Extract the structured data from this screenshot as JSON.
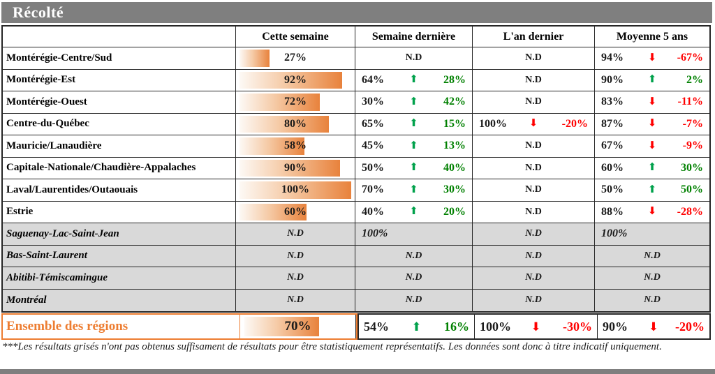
{
  "title": "Récolté",
  "columns": [
    "Cette semaine",
    "Semaine dernière",
    "L'an dernier",
    "Moyenne 5 ans"
  ],
  "icons": {
    "up": "⬆",
    "down": "⬇"
  },
  "colors": {
    "accent_orange": "#ed7d31",
    "bar_orange": "#e8823c",
    "green_text": "#008000",
    "green_arrow": "#00a14b",
    "red": "#ff0000",
    "gray_band": "#7f7f7f",
    "gray_row": "#d9d9d9"
  },
  "table": {
    "rows": [
      {
        "name": "Montérégie-Centre/Sud",
        "grayed": false,
        "this_week": {
          "bar_pct": 27,
          "label": "27%"
        },
        "last_week": {
          "nd": "N.D"
        },
        "last_year": {
          "nd": "N.D"
        },
        "avg_5yr": {
          "value": "94%",
          "dir": "down",
          "change": "-67%"
        }
      },
      {
        "name": "Montérégie-Est",
        "grayed": false,
        "this_week": {
          "bar_pct": 92,
          "label": "92%"
        },
        "last_week": {
          "value": "64%",
          "dir": "up",
          "change": "28%"
        },
        "last_year": {
          "nd": "N.D"
        },
        "avg_5yr": {
          "value": "90%",
          "dir": "up",
          "change": "2%"
        }
      },
      {
        "name": "Montérégie-Ouest",
        "grayed": false,
        "this_week": {
          "bar_pct": 72,
          "label": "72%"
        },
        "last_week": {
          "value": "30%",
          "dir": "up",
          "change": "42%"
        },
        "last_year": {
          "nd": "N.D"
        },
        "avg_5yr": {
          "value": "83%",
          "dir": "down",
          "change": "-11%"
        }
      },
      {
        "name": "Centre-du-Québec",
        "grayed": false,
        "this_week": {
          "bar_pct": 80,
          "label": "80%"
        },
        "last_week": {
          "value": "65%",
          "dir": "up",
          "change": "15%"
        },
        "last_year": {
          "value": "100%",
          "dir": "down",
          "change": "-20%"
        },
        "avg_5yr": {
          "value": "87%",
          "dir": "down",
          "change": "-7%"
        }
      },
      {
        "name": "Mauricie/Lanaudière",
        "grayed": false,
        "this_week": {
          "bar_pct": 58,
          "label": "58%"
        },
        "last_week": {
          "value": "45%",
          "dir": "up",
          "change": "13%"
        },
        "last_year": {
          "nd": "N.D"
        },
        "avg_5yr": {
          "value": "67%",
          "dir": "down",
          "change": "-9%"
        }
      },
      {
        "name": "Capitale-Nationale/Chaudière-Appalaches",
        "grayed": false,
        "this_week": {
          "bar_pct": 90,
          "label": "90%"
        },
        "last_week": {
          "value": "50%",
          "dir": "up",
          "change": "40%"
        },
        "last_year": {
          "nd": "N.D"
        },
        "avg_5yr": {
          "value": "60%",
          "dir": "up",
          "change": "30%"
        }
      },
      {
        "name": "Laval/Laurentides/Outaouais",
        "grayed": false,
        "this_week": {
          "bar_pct": 100,
          "label": "100%"
        },
        "last_week": {
          "value": "70%",
          "dir": "up",
          "change": "30%"
        },
        "last_year": {
          "nd": "N.D"
        },
        "avg_5yr": {
          "value": "50%",
          "dir": "up",
          "change": "50%"
        }
      },
      {
        "name": "Estrie",
        "grayed": false,
        "this_week": {
          "bar_pct": 60,
          "label": "60%"
        },
        "last_week": {
          "value": "40%",
          "dir": "up",
          "change": "20%"
        },
        "last_year": {
          "nd": "N.D"
        },
        "avg_5yr": {
          "value": "88%",
          "dir": "down",
          "change": "-28%"
        }
      },
      {
        "name": "Saguenay-Lac-Saint-Jean",
        "grayed": true,
        "this_week": {
          "nd": "N.D"
        },
        "last_week": {
          "value": "100%"
        },
        "last_year": {
          "nd": "N.D"
        },
        "avg_5yr": {
          "value": "100%"
        }
      },
      {
        "name": "Bas-Saint-Laurent",
        "grayed": true,
        "this_week": {
          "nd": "N.D"
        },
        "last_week": {
          "nd": "N.D"
        },
        "last_year": {
          "nd": "N.D"
        },
        "avg_5yr": {
          "nd": "N.D"
        }
      },
      {
        "name": "Abitibi-Témiscamingue",
        "grayed": true,
        "this_week": {
          "nd": "N.D"
        },
        "last_week": {
          "nd": "N.D"
        },
        "last_year": {
          "nd": "N.D"
        },
        "avg_5yr": {
          "nd": "N.D"
        }
      },
      {
        "name": "Montréal",
        "grayed": true,
        "this_week": {
          "nd": "N.D"
        },
        "last_week": {
          "nd": "N.D"
        },
        "last_year": {
          "nd": "N.D"
        },
        "avg_5yr": {
          "nd": "N.D"
        }
      }
    ],
    "total_row": {
      "name": "Ensemble des régions",
      "this_week": {
        "bar_pct": 70,
        "label": "70%"
      },
      "last_week": {
        "value": "54%",
        "dir": "up",
        "change": "16%"
      },
      "last_year": {
        "value": "100%",
        "dir": "down",
        "change": "-30%"
      },
      "avg_5yr": {
        "value": "90%",
        "dir": "down",
        "change": "-20%"
      }
    }
  },
  "footnote": "***Les résultats grisés n'ont pas obtenus suffisament de résultats pour être statistiquement représentatifs. Les données sont donc à titre indicatif uniquement."
}
